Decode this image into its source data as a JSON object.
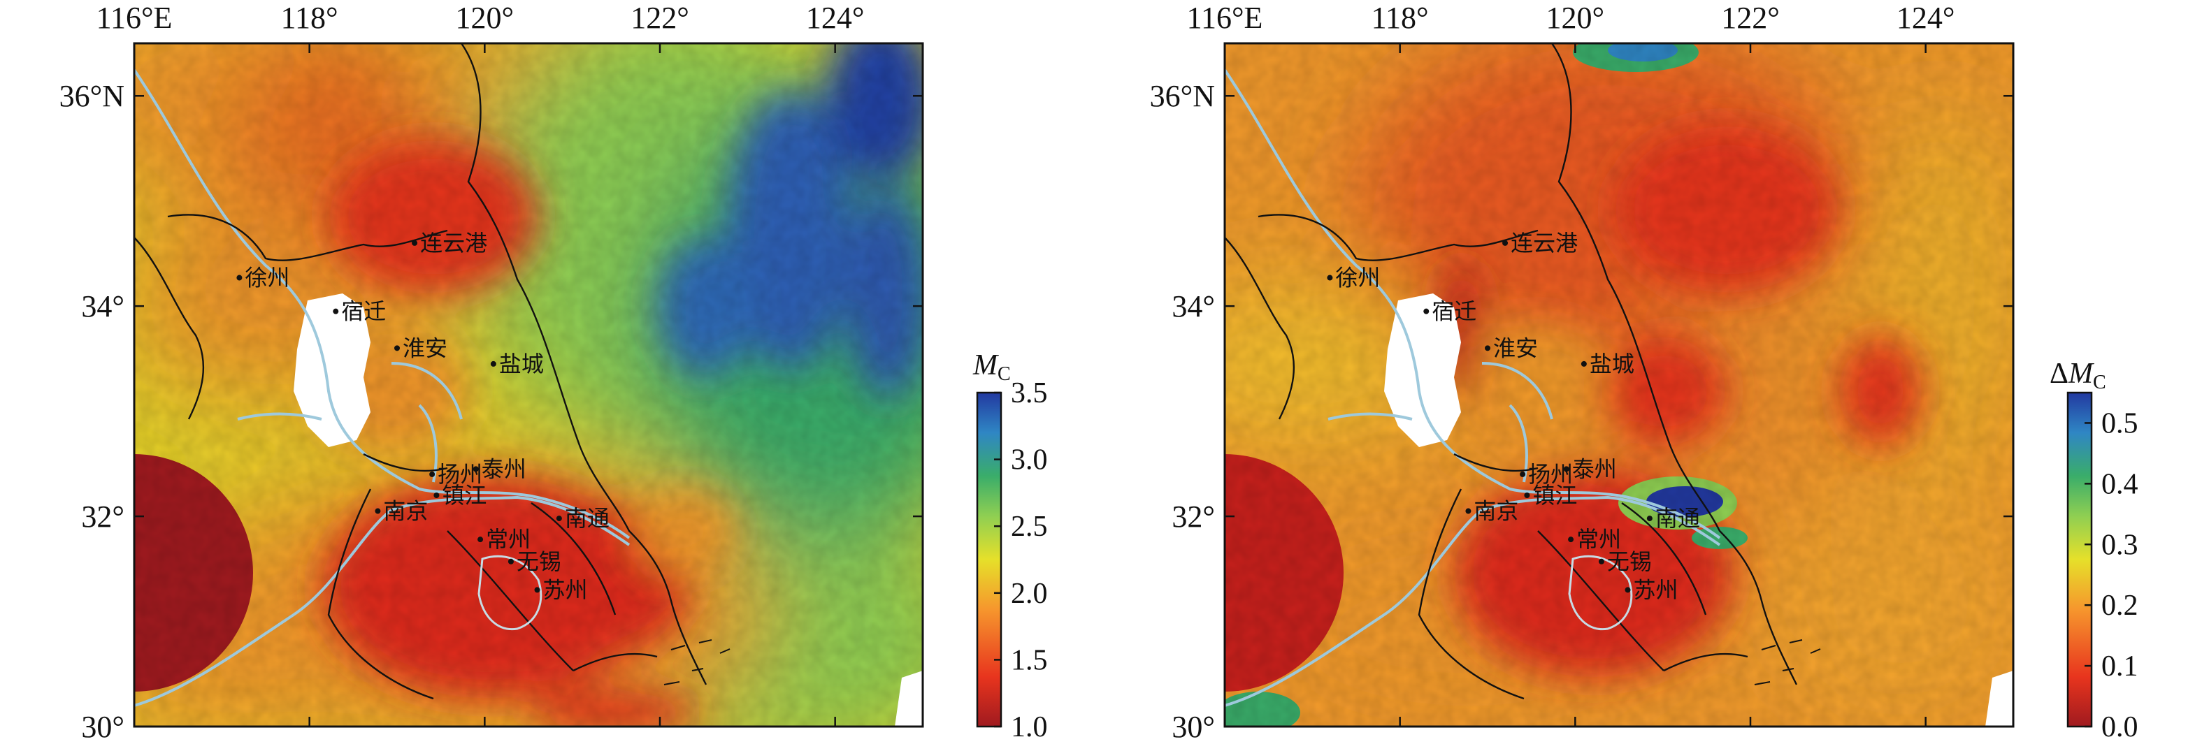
{
  "maps": [
    {
      "id": "mc",
      "colorbar_title_main": "M",
      "colorbar_title_sub": "C",
      "colorbar_title_prefix": "",
      "colorbar_ticks": [
        "1.0",
        "1.5",
        "2.0",
        "2.5",
        "3.0",
        "3.5"
      ],
      "colorbar_range": [
        1.0,
        3.5
      ]
    },
    {
      "id": "dmc",
      "colorbar_title_main": "M",
      "colorbar_title_sub": "C",
      "colorbar_title_prefix": "Δ",
      "colorbar_ticks": [
        "0.0",
        "0.1",
        "0.2",
        "0.3",
        "0.4",
        "0.5"
      ],
      "colorbar_range": [
        0.0,
        0.55
      ]
    }
  ],
  "lon_ticks": [
    "116°E",
    "118°",
    "120°",
    "122°",
    "124°"
  ],
  "lat_ticks": [
    "36°N",
    "34°",
    "32°",
    "30°"
  ],
  "extent": {
    "lon": [
      116,
      125
    ],
    "lat": [
      30,
      36.5
    ]
  },
  "cities": [
    {
      "name": "徐州",
      "lon": 117.2,
      "lat": 34.27
    },
    {
      "name": "连云港",
      "lon": 119.2,
      "lat": 34.6
    },
    {
      "name": "宿迁",
      "lon": 118.3,
      "lat": 33.95
    },
    {
      "name": "淮安",
      "lon": 119.0,
      "lat": 33.6
    },
    {
      "name": "盐城",
      "lon": 120.1,
      "lat": 33.45
    },
    {
      "name": "扬州",
      "lon": 119.4,
      "lat": 32.4
    },
    {
      "name": "泰州",
      "lon": 119.9,
      "lat": 32.45
    },
    {
      "name": "南京",
      "lon": 118.78,
      "lat": 32.05
    },
    {
      "name": "镇江",
      "lon": 119.45,
      "lat": 32.2
    },
    {
      "name": "南通",
      "lon": 120.85,
      "lat": 31.98
    },
    {
      "name": "常州",
      "lon": 119.95,
      "lat": 31.78
    },
    {
      "name": "无锡",
      "lon": 120.3,
      "lat": 31.57
    },
    {
      "name": "苏州",
      "lon": 120.6,
      "lat": 31.3
    }
  ],
  "colors": {
    "scale": [
      "#a01a1f",
      "#e8351e",
      "#f6962d",
      "#e6e02a",
      "#8fcf52",
      "#3aad6a",
      "#2f86c4",
      "#2239a0"
    ],
    "coast": "#111111",
    "river": "#9ec9dc",
    "lake": "#ffffff"
  }
}
